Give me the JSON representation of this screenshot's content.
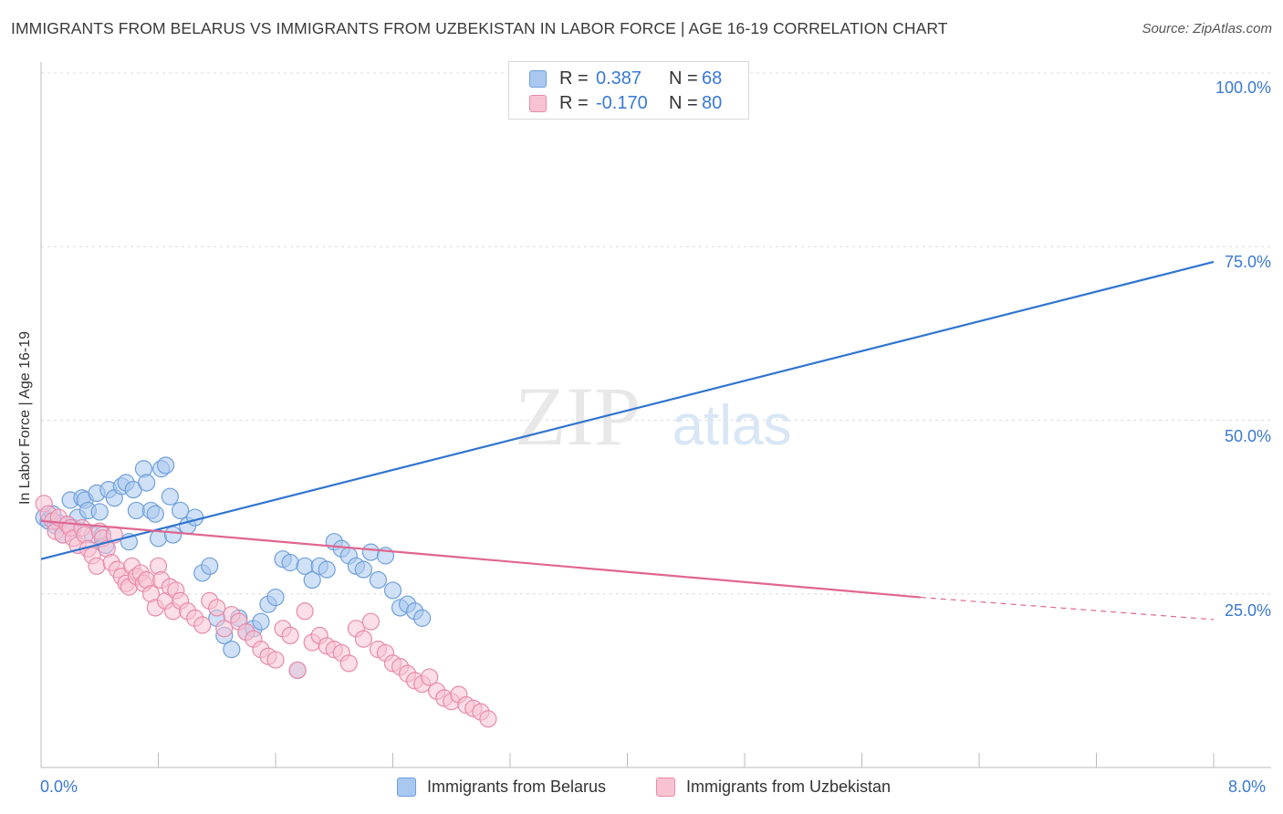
{
  "title": "IMMIGRANTS FROM BELARUS VS IMMIGRANTS FROM UZBEKISTAN IN LABOR FORCE | AGE 16-19 CORRELATION CHART",
  "source": "Source: ZipAtlas.com",
  "watermark": {
    "zip": "ZIP",
    "atlas": "atlas"
  },
  "legend": {
    "rows": [
      {
        "r_label": "R =",
        "r_value": "0.387",
        "n_label": "N =",
        "n_value": "68",
        "color": "#a9c8f0",
        "border": "#6f9fdb"
      },
      {
        "r_label": "R =",
        "r_value": "-0.170",
        "n_label": "N =",
        "n_value": "80",
        "color": "#f7c3d3",
        "border": "#e88aa9"
      }
    ]
  },
  "chart_data": {
    "type": "scatter",
    "title": "IMMIGRANTS FROM BELARUS VS IMMIGRANTS FROM UZBEKISTAN IN LABOR FORCE | AGE 16-19 CORRELATION CHART",
    "xlabel": "",
    "ylabel": "In Labor Force | Age 16-19",
    "xlim": [
      0,
      8
    ],
    "ylim": [
      0,
      105
    ],
    "x_tick_labels": [
      "0.0%",
      "8.0%"
    ],
    "y_ticks": [
      25,
      50,
      75,
      100
    ],
    "y_tick_labels": [
      "25.0%",
      "50.0%",
      "75.0%",
      "100.0%"
    ],
    "grid": true,
    "legend_position": "top-center",
    "series": [
      {
        "name": "Immigrants from Belarus",
        "color": "#6f9fdb",
        "fill": "#a9c8f0",
        "trend": {
          "x": [
            0,
            8
          ],
          "y": [
            30.0,
            72.8
          ],
          "color": "#2f74d0"
        },
        "points": [
          [
            0.02,
            36.0
          ],
          [
            0.05,
            35.5
          ],
          [
            0.08,
            36.5
          ],
          [
            0.1,
            34.8
          ],
          [
            0.12,
            35.2
          ],
          [
            0.15,
            33.5
          ],
          [
            0.18,
            35.0
          ],
          [
            0.2,
            38.5
          ],
          [
            0.22,
            34.5
          ],
          [
            0.25,
            36.0
          ],
          [
            0.28,
            38.8
          ],
          [
            0.3,
            38.5
          ],
          [
            0.32,
            37.0
          ],
          [
            0.35,
            33.5
          ],
          [
            0.38,
            39.5
          ],
          [
            0.4,
            36.8
          ],
          [
            0.42,
            33.5
          ],
          [
            0.44,
            32.0
          ],
          [
            0.46,
            40.0
          ],
          [
            0.5,
            38.8
          ],
          [
            0.55,
            40.5
          ],
          [
            0.58,
            41.0
          ],
          [
            0.6,
            32.5
          ],
          [
            0.63,
            40.0
          ],
          [
            0.65,
            37.0
          ],
          [
            0.7,
            43.0
          ],
          [
            0.72,
            41.0
          ],
          [
            0.75,
            37.0
          ],
          [
            0.78,
            36.5
          ],
          [
            0.8,
            33.0
          ],
          [
            0.82,
            43.0
          ],
          [
            0.85,
            43.5
          ],
          [
            0.88,
            39.0
          ],
          [
            0.9,
            33.5
          ],
          [
            0.95,
            37.0
          ],
          [
            1.0,
            34.8
          ],
          [
            1.05,
            36.0
          ],
          [
            1.1,
            28.0
          ],
          [
            1.15,
            29.0
          ],
          [
            1.2,
            21.5
          ],
          [
            1.25,
            19.0
          ],
          [
            1.3,
            17.0
          ],
          [
            1.35,
            21.5
          ],
          [
            1.4,
            19.5
          ],
          [
            1.45,
            20.0
          ],
          [
            1.5,
            21.0
          ],
          [
            1.55,
            23.5
          ],
          [
            1.6,
            24.5
          ],
          [
            1.65,
            30.0
          ],
          [
            1.7,
            29.5
          ],
          [
            1.75,
            14.0
          ],
          [
            1.8,
            29.0
          ],
          [
            1.85,
            27.0
          ],
          [
            1.9,
            29.0
          ],
          [
            1.95,
            28.5
          ],
          [
            2.0,
            32.5
          ],
          [
            2.05,
            31.5
          ],
          [
            2.1,
            30.5
          ],
          [
            2.15,
            29.0
          ],
          [
            2.2,
            28.5
          ],
          [
            2.25,
            31.0
          ],
          [
            2.3,
            27.0
          ],
          [
            2.35,
            30.5
          ],
          [
            2.4,
            25.5
          ],
          [
            2.45,
            23.0
          ],
          [
            2.5,
            23.5
          ],
          [
            2.55,
            22.5
          ],
          [
            2.6,
            21.5
          ]
        ]
      },
      {
        "name": "Immigrants from Uzbekistan",
        "color": "#e88aa9",
        "fill": "#f7c3d3",
        "trend": {
          "x": [
            0,
            6.0
          ],
          "y": [
            35.5,
            24.5
          ],
          "dashed_to": [
            8,
            21.3
          ],
          "color": "#e0668f"
        },
        "points": [
          [
            0.02,
            38.0
          ],
          [
            0.05,
            36.5
          ],
          [
            0.08,
            35.5
          ],
          [
            0.1,
            34.0
          ],
          [
            0.12,
            36.0
          ],
          [
            0.15,
            33.5
          ],
          [
            0.18,
            35.0
          ],
          [
            0.2,
            34.5
          ],
          [
            0.22,
            33.0
          ],
          [
            0.25,
            32.0
          ],
          [
            0.28,
            34.5
          ],
          [
            0.3,
            33.5
          ],
          [
            0.32,
            31.5
          ],
          [
            0.35,
            30.5
          ],
          [
            0.38,
            29.0
          ],
          [
            0.4,
            34.0
          ],
          [
            0.42,
            33.0
          ],
          [
            0.45,
            31.5
          ],
          [
            0.48,
            29.5
          ],
          [
            0.5,
            33.5
          ],
          [
            0.52,
            28.5
          ],
          [
            0.55,
            27.5
          ],
          [
            0.58,
            26.5
          ],
          [
            0.6,
            26.0
          ],
          [
            0.62,
            29.0
          ],
          [
            0.65,
            27.5
          ],
          [
            0.68,
            28.0
          ],
          [
            0.7,
            26.5
          ],
          [
            0.72,
            27.0
          ],
          [
            0.75,
            25.0
          ],
          [
            0.78,
            23.0
          ],
          [
            0.8,
            29.0
          ],
          [
            0.82,
            27.0
          ],
          [
            0.85,
            24.0
          ],
          [
            0.88,
            26.0
          ],
          [
            0.9,
            22.5
          ],
          [
            0.92,
            25.5
          ],
          [
            0.95,
            24.0
          ],
          [
            1.0,
            22.5
          ],
          [
            1.05,
            21.5
          ],
          [
            1.1,
            20.5
          ],
          [
            1.15,
            24.0
          ],
          [
            1.2,
            23.0
          ],
          [
            1.25,
            20.0
          ],
          [
            1.3,
            22.0
          ],
          [
            1.35,
            21.0
          ],
          [
            1.4,
            19.5
          ],
          [
            1.45,
            18.5
          ],
          [
            1.5,
            17.0
          ],
          [
            1.55,
            16.0
          ],
          [
            1.6,
            15.5
          ],
          [
            1.65,
            20.0
          ],
          [
            1.7,
            19.0
          ],
          [
            1.75,
            14.0
          ],
          [
            1.8,
            22.5
          ],
          [
            1.85,
            18.0
          ],
          [
            1.9,
            19.0
          ],
          [
            1.95,
            17.5
          ],
          [
            2.0,
            17.0
          ],
          [
            2.05,
            16.5
          ],
          [
            2.1,
            15.0
          ],
          [
            2.15,
            20.0
          ],
          [
            2.2,
            18.5
          ],
          [
            2.25,
            21.0
          ],
          [
            2.3,
            17.0
          ],
          [
            2.35,
            16.5
          ],
          [
            2.4,
            15.0
          ],
          [
            2.45,
            14.5
          ],
          [
            2.5,
            13.5
          ],
          [
            2.55,
            12.5
          ],
          [
            2.6,
            12.0
          ],
          [
            2.65,
            13.0
          ],
          [
            2.7,
            11.0
          ],
          [
            2.75,
            10.0
          ],
          [
            2.8,
            9.5
          ],
          [
            2.85,
            10.5
          ],
          [
            2.9,
            9.0
          ],
          [
            2.95,
            8.5
          ],
          [
            3.0,
            8.0
          ],
          [
            3.05,
            7.0
          ]
        ]
      }
    ]
  }
}
